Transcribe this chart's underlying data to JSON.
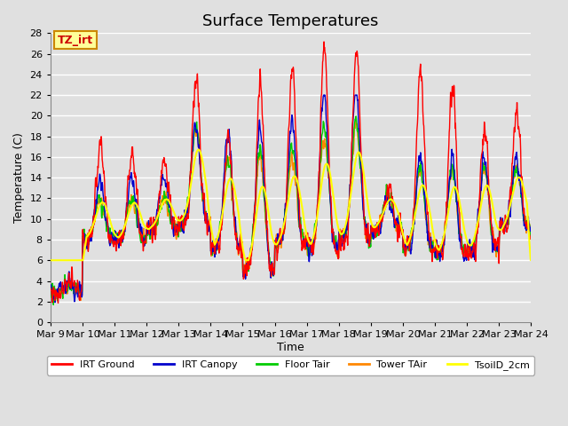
{
  "title": "Surface Temperatures",
  "xlabel": "Time",
  "ylabel": "Temperature (C)",
  "ylim": [
    0,
    28
  ],
  "yticks": [
    0,
    2,
    4,
    6,
    8,
    10,
    12,
    14,
    16,
    18,
    20,
    22,
    24,
    26,
    28
  ],
  "xtick_labels": [
    "Mar 9",
    "Mar 10",
    "Mar 11",
    "Mar 12",
    "Mar 13",
    "Mar 14",
    "Mar 15",
    "Mar 16",
    "Mar 17",
    "Mar 18",
    "Mar 19",
    "Mar 20",
    "Mar 21",
    "Mar 22",
    "Mar 23",
    "Mar 24"
  ],
  "series_colors": {
    "IRT Ground": "#ff0000",
    "IRT Canopy": "#0000cc",
    "Floor Tair": "#00cc00",
    "Tower TAir": "#ff8800",
    "TsoilD_2cm": "#ffff00"
  },
  "legend_labels": [
    "IRT Ground",
    "IRT Canopy",
    "Floor Tair",
    "Tower TAir",
    "TsoilD_2cm"
  ],
  "annotation_text": "TZ_irt",
  "annotation_bg": "#ffff99",
  "annotation_border": "#cc8800",
  "bg_color": "#e0e0e0",
  "grid_color": "#ffffff",
  "title_fontsize": 13,
  "axis_label_fontsize": 9,
  "tick_fontsize": 8
}
